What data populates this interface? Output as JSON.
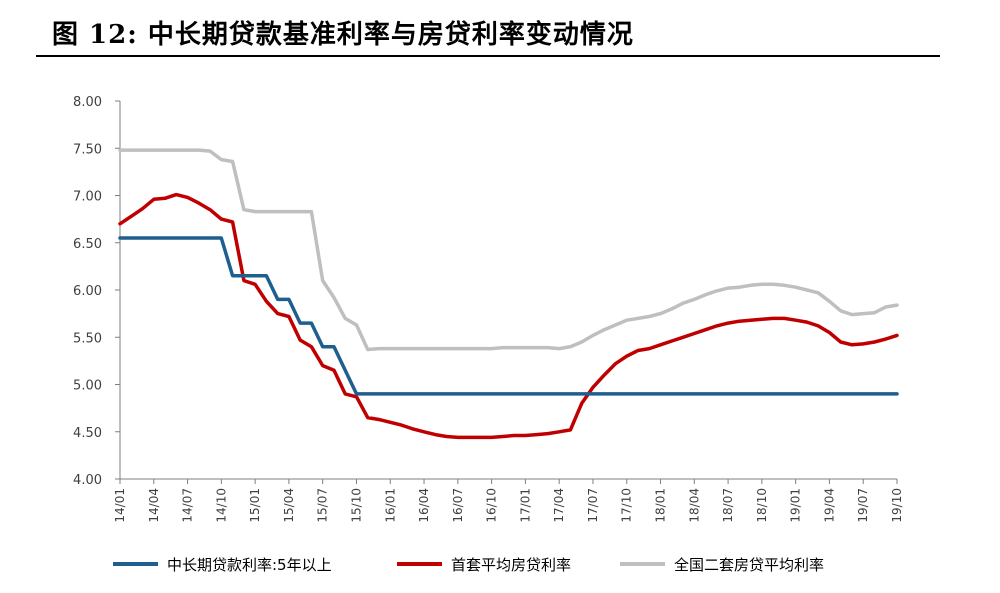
{
  "figure": {
    "title": "图 12:  中长期贷款基准利率与房贷利率变动情况"
  },
  "chart_data": {
    "type": "line",
    "title": "",
    "xlabel": "",
    "ylabel": "",
    "ylim": [
      4.0,
      8.0
    ],
    "yticks": [
      "8.00",
      "7.50",
      "7.00",
      "6.50",
      "6.00",
      "5.50",
      "5.00",
      "4.50",
      "4.00"
    ],
    "x": [
      "14/01",
      "14/02",
      "14/03",
      "14/04",
      "14/05",
      "14/06",
      "14/07",
      "14/08",
      "14/09",
      "14/10",
      "14/11",
      "14/12",
      "15/01",
      "15/02",
      "15/03",
      "15/04",
      "15/05",
      "15/06",
      "15/07",
      "15/08",
      "15/09",
      "15/10",
      "15/11",
      "15/12",
      "16/01",
      "16/02",
      "16/03",
      "16/04",
      "16/05",
      "16/06",
      "16/07",
      "16/08",
      "16/09",
      "16/10",
      "16/11",
      "16/12",
      "17/01",
      "17/02",
      "17/03",
      "17/04",
      "17/05",
      "17/06",
      "17/07",
      "17/08",
      "17/09",
      "17/10",
      "17/11",
      "17/12",
      "18/01",
      "18/02",
      "18/03",
      "18/04",
      "18/05",
      "18/06",
      "18/07",
      "18/08",
      "18/09",
      "18/10",
      "18/11",
      "18/12",
      "19/01",
      "19/02",
      "19/03",
      "19/04",
      "19/05",
      "19/06",
      "19/07",
      "19/08",
      "19/09",
      "19/10"
    ],
    "xtick_labels": [
      "14/01",
      "14/04",
      "14/07",
      "14/10",
      "15/01",
      "15/04",
      "15/07",
      "15/10",
      "16/01",
      "16/04",
      "16/07",
      "16/10",
      "17/01",
      "17/04",
      "17/07",
      "17/10",
      "18/01",
      "18/04",
      "18/07",
      "18/10",
      "19/01",
      "19/04",
      "19/07",
      "19/10"
    ],
    "series": [
      {
        "name": "中长期贷款利率:5年以上",
        "color": "#1f5f8f",
        "values": [
          6.55,
          6.55,
          6.55,
          6.55,
          6.55,
          6.55,
          6.55,
          6.55,
          6.55,
          6.55,
          6.15,
          6.15,
          6.15,
          6.15,
          5.9,
          5.9,
          5.65,
          5.65,
          5.4,
          5.4,
          5.15,
          4.9,
          4.9,
          4.9,
          4.9,
          4.9,
          4.9,
          4.9,
          4.9,
          4.9,
          4.9,
          4.9,
          4.9,
          4.9,
          4.9,
          4.9,
          4.9,
          4.9,
          4.9,
          4.9,
          4.9,
          4.9,
          4.9,
          4.9,
          4.9,
          4.9,
          4.9,
          4.9,
          4.9,
          4.9,
          4.9,
          4.9,
          4.9,
          4.9,
          4.9,
          4.9,
          4.9,
          4.9,
          4.9,
          4.9,
          4.9,
          4.9,
          4.9,
          4.9,
          4.9,
          4.9,
          4.9,
          4.9,
          4.9,
          4.9
        ]
      },
      {
        "name": "首套平均房贷利率",
        "color": "#c00000",
        "values": [
          6.7,
          6.78,
          6.86,
          6.96,
          6.97,
          7.01,
          6.98,
          6.92,
          6.85,
          6.75,
          6.72,
          6.1,
          6.06,
          5.88,
          5.75,
          5.72,
          5.47,
          5.4,
          5.2,
          5.15,
          4.9,
          4.87,
          4.65,
          4.63,
          4.6,
          4.57,
          4.53,
          4.5,
          4.47,
          4.45,
          4.44,
          4.44,
          4.44,
          4.44,
          4.45,
          4.46,
          4.46,
          4.47,
          4.48,
          4.5,
          4.52,
          4.8,
          4.97,
          5.1,
          5.22,
          5.3,
          5.36,
          5.38,
          5.42,
          5.46,
          5.5,
          5.54,
          5.58,
          5.62,
          5.65,
          5.67,
          5.68,
          5.69,
          5.7,
          5.7,
          5.68,
          5.66,
          5.62,
          5.55,
          5.45,
          5.42,
          5.43,
          5.45,
          5.48,
          5.52
        ]
      },
      {
        "name": "全国二套房贷平均利率",
        "color": "#bfbfbf",
        "values": [
          7.48,
          7.48,
          7.48,
          7.48,
          7.48,
          7.48,
          7.48,
          7.48,
          7.47,
          7.38,
          7.36,
          6.85,
          6.83,
          6.83,
          6.83,
          6.83,
          6.83,
          6.83,
          6.1,
          5.92,
          5.7,
          5.63,
          5.37,
          5.38,
          5.38,
          5.38,
          5.38,
          5.38,
          5.38,
          5.38,
          5.38,
          5.38,
          5.38,
          5.38,
          5.39,
          5.39,
          5.39,
          5.39,
          5.39,
          5.38,
          5.4,
          5.45,
          5.52,
          5.58,
          5.63,
          5.68,
          5.7,
          5.72,
          5.75,
          5.8,
          5.86,
          5.9,
          5.95,
          5.99,
          6.02,
          6.03,
          6.05,
          6.06,
          6.06,
          6.05,
          6.03,
          6.0,
          5.97,
          5.88,
          5.78,
          5.74,
          5.75,
          5.76,
          5.82,
          5.84
        ]
      }
    ]
  }
}
